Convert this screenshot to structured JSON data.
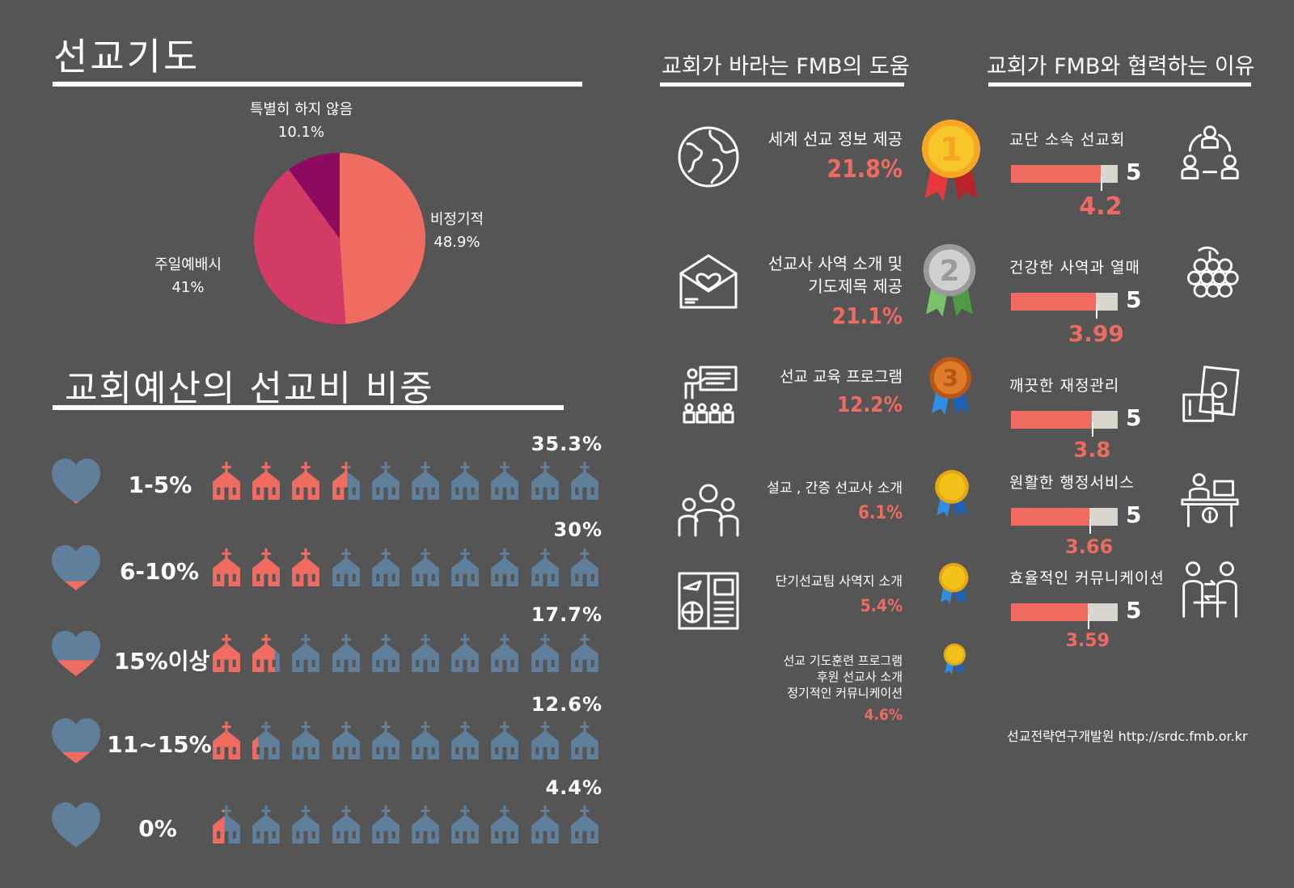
{
  "prayer": {
    "title": "선교기도",
    "chart_data": {
      "type": "pie",
      "slices": [
        {
          "label": "비정기적",
          "value": 48.9,
          "display": "48.9%",
          "color": "#f06b60"
        },
        {
          "label": "주일예배시",
          "value": 41,
          "display": "41%",
          "color": "#d13b66"
        },
        {
          "label": "특별히 하지 않음",
          "value": 10.1,
          "display": "10.1%",
          "color": "#8e0a5f"
        }
      ]
    }
  },
  "budget": {
    "title": "교회예산의 선교비 비중",
    "chart_data": {
      "type": "bar",
      "categories": [
        "1-5%",
        "6-10%",
        "15%이상",
        "11~15%",
        "0%"
      ],
      "values": [
        35.3,
        30,
        17.7,
        12.6,
        4.4
      ],
      "display": [
        "35.3%",
        "30%",
        "17.7%",
        "12.6%",
        "4.4%"
      ],
      "heart_fill": [
        0.05,
        0.2,
        0.35,
        0.25,
        0
      ],
      "icons_per_row": 10,
      "full_scale": 100,
      "colors": {
        "filled": "#f06b60",
        "empty": "#5f7f9a"
      }
    }
  },
  "help": {
    "title": "교회가 바라는 FMB의 도움",
    "chart_data": {
      "type": "bar",
      "categories": [
        "세계 선교 정보 제공",
        "선교사 사역 소개 및 기도제목 제공",
        "선교 교육 프로그램",
        "설교 , 간증 선교사 소개",
        "단기선교팀 사역지 소개",
        "선교 기도훈련 프로그램 후원 선교사 소개 정기적인 커뮤니케이션"
      ],
      "values": [
        21.8,
        21.1,
        12.2,
        6.1,
        5.4,
        4.6
      ]
    },
    "items": [
      {
        "lines": [
          "세계 선교 정보 제공"
        ],
        "pct": "21.8%",
        "icon": "globe-icon",
        "medal": "1",
        "medal_kind": "gold"
      },
      {
        "lines": [
          "선교사 사역 소개 및",
          "기도제목 제공"
        ],
        "pct": "21.1%",
        "icon": "envelope-heart-icon",
        "medal": "2",
        "medal_kind": "silver"
      },
      {
        "lines": [
          "선교 교육 프로그램"
        ],
        "pct": "12.2%",
        "icon": "presentation-icon",
        "medal": "3",
        "medal_kind": "bronze"
      },
      {
        "lines": [
          "설교 , 간증 선교사 소개"
        ],
        "pct": "6.1%",
        "icon": "people-group-icon",
        "medal": "",
        "medal_kind": "plain"
      },
      {
        "lines": [
          "단기선교팀 사역지 소개"
        ],
        "pct": "5.4%",
        "icon": "travel-brochure-icon",
        "medal": "",
        "medal_kind": "plain"
      },
      {
        "lines": [
          "선교 기도훈련 프로그램",
          "후원 선교사 소개",
          "정기적인 커뮤니케이션"
        ],
        "pct": "4.6%",
        "icon": "",
        "medal": "",
        "medal_kind": "plain"
      }
    ]
  },
  "reasons": {
    "title": "교회가 FMB와 협력하는 이유",
    "chart_data": {
      "type": "bar",
      "categories": [
        "교단 소속 선교회",
        "건강한 사역과 열매",
        "깨끗한 재정관리",
        "원활한 행정서비스",
        "효율적인 커뮤니케이션"
      ],
      "values": [
        4.2,
        3.99,
        3.8,
        3.66,
        3.59
      ],
      "max": 5
    },
    "max_label": "5",
    "items": [
      {
        "label": "교단 소속 선교회",
        "score": "4.2",
        "icon": "people-cycle-icon"
      },
      {
        "label": "건강한 사역과 열매",
        "score": "3.99",
        "icon": "grapes-icon"
      },
      {
        "label": "깨끗한 재정관리",
        "score": "3.8",
        "icon": "wallet-money-icon"
      },
      {
        "label": "원활한 행정서비스",
        "score": "3.66",
        "icon": "service-desk-icon"
      },
      {
        "label": "효율적인 커뮤니케이션",
        "score": "3.59",
        "icon": "conversation-icon"
      }
    ]
  },
  "source": "선교전략연구개발원 http://srdc.fmb.or.kr",
  "colors": {
    "background": "#555555",
    "coral": "#f06b60",
    "bar_track": "#d9d6cf",
    "gold": "#f2c21a",
    "silver": "#b8b8b8",
    "bronze": "#cf6d26"
  }
}
